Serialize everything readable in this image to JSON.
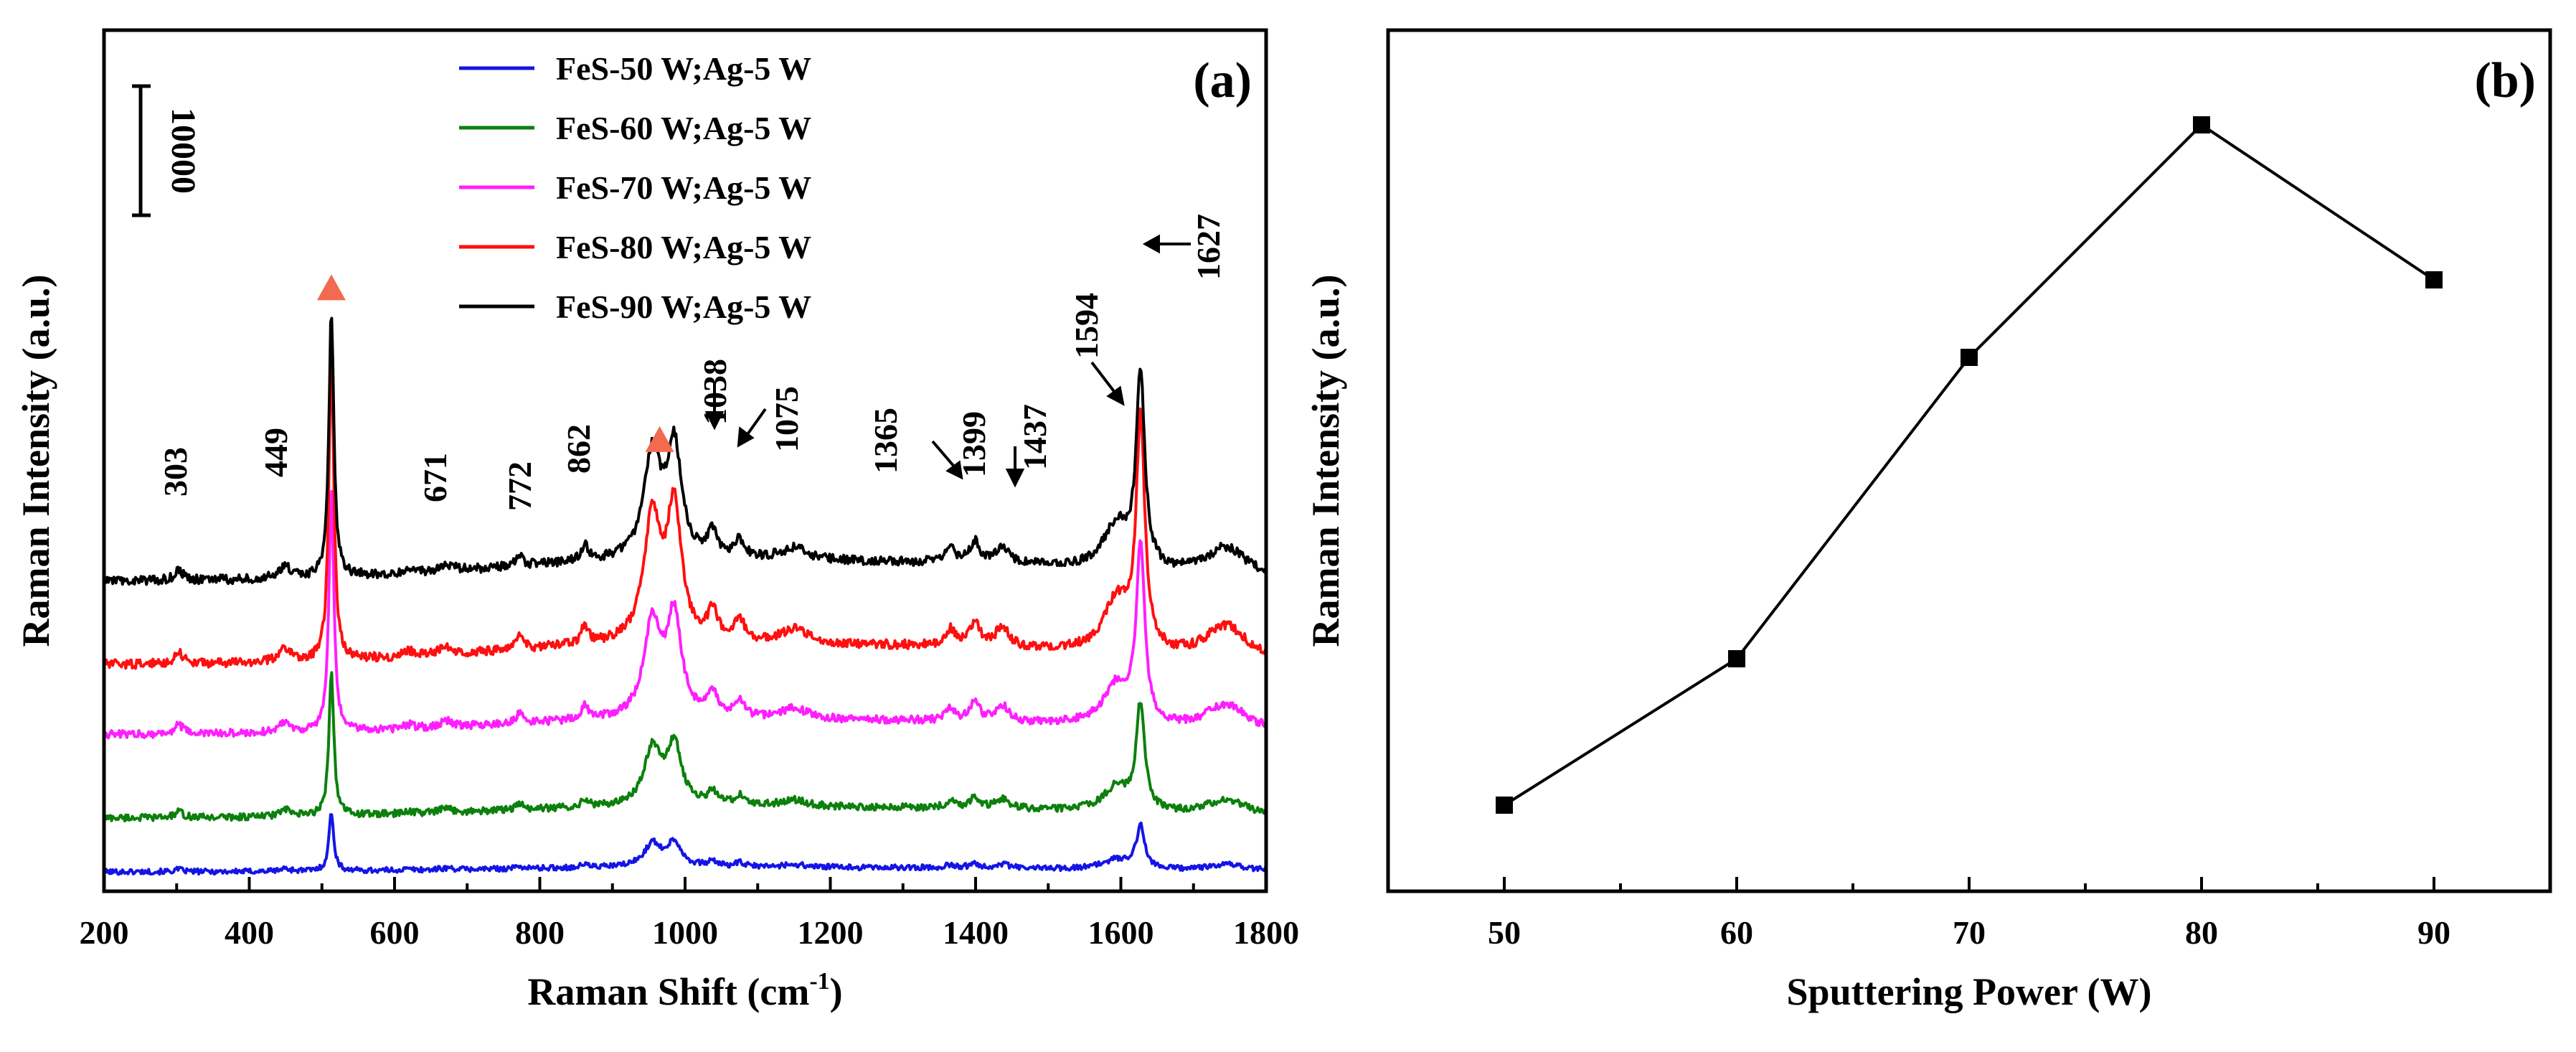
{
  "chart_data": [
    {
      "panel": "(a)",
      "type": "line",
      "title": "",
      "xlabel": "Raman Shift (cm",
      "xlabel_superscript": "-1",
      "xlabel_close": ")",
      "ylabel": "Raman Intensity (a.u.)",
      "xlim": [
        200,
        1800
      ],
      "xticks": [
        "200",
        "400",
        "600",
        "800",
        "1000",
        "1200",
        "1400",
        "1600",
        "1800"
      ],
      "scale_bar_label": "10000",
      "series": [
        {
          "name": "FeS-50 W;Ag-5 W",
          "color": "#1414e6",
          "offset": 0.0,
          "peak_scale": 0.12,
          "bg_scale": 0.12
        },
        {
          "name": "FeS-60 W;Ag-5 W",
          "color": "#0c800c",
          "offset": 1.0,
          "peak_scale": 0.3,
          "bg_scale": 0.3
        },
        {
          "name": "FeS-70 W;Ag-5 W",
          "color": "#ff1eff",
          "offset": 2.55,
          "peak_scale": 0.5,
          "bg_scale": 0.4
        },
        {
          "name": "FeS-80 W;Ag-5 W",
          "color": "#ff0f0f",
          "offset": 3.85,
          "peak_scale": 0.65,
          "bg_scale": 0.55
        },
        {
          "name": "FeS-90 W;Ag-5 W",
          "color": "#000000",
          "offset": 5.4,
          "peak_scale": 0.55,
          "bg_scale": 0.55
        }
      ],
      "peaks": [
        {
          "x": 303,
          "h": 0.35,
          "w": 7
        },
        {
          "x": 449,
          "h": 0.4,
          "w": 9
        },
        {
          "x": 513,
          "h": 9.0,
          "w": 4
        },
        {
          "x": 620,
          "h": 0.15,
          "w": 8
        },
        {
          "x": 671,
          "h": 0.25,
          "w": 10
        },
        {
          "x": 772,
          "h": 0.35,
          "w": 6
        },
        {
          "x": 862,
          "h": 0.5,
          "w": 6
        },
        {
          "x": 955,
          "h": 3.5,
          "w": 14
        },
        {
          "x": 985,
          "h": 3.7,
          "w": 12
        },
        {
          "x": 1038,
          "h": 0.8,
          "w": 8
        },
        {
          "x": 1075,
          "h": 0.6,
          "w": 8
        },
        {
          "x": 1150,
          "h": 0.4,
          "w": 22
        },
        {
          "x": 1365,
          "h": 0.45,
          "w": 8
        },
        {
          "x": 1399,
          "h": 0.7,
          "w": 8
        },
        {
          "x": 1437,
          "h": 0.6,
          "w": 10
        },
        {
          "x": 1594,
          "h": 1.5,
          "w": 22
        },
        {
          "x": 1627,
          "h": 6.5,
          "w": 7
        },
        {
          "x": 1745,
          "h": 1.0,
          "w": 35
        }
      ],
      "peak_labels": [
        "303",
        "449",
        "671",
        "772",
        "862",
        "1038",
        "1075",
        "1365",
        "1399",
        "1437",
        "1594",
        "1627"
      ],
      "markers": [
        {
          "x": 513,
          "shape": "triangle",
          "color": "#f26a4f"
        },
        {
          "x": 965,
          "shape": "triangle",
          "color": "#f26a4f"
        }
      ]
    },
    {
      "panel": "(b)",
      "type": "line",
      "title": "",
      "xlabel": "Sputtering Power (W)",
      "ylabel": "Raman Intensity (a.u.)",
      "xlim": [
        45,
        95
      ],
      "ylim": [
        0,
        100
      ],
      "x": [
        50,
        60,
        70,
        80,
        90
      ],
      "values": [
        10,
        27,
        62,
        89,
        71
      ],
      "xticks": [
        "50",
        "60",
        "70",
        "80",
        "90"
      ],
      "marker": "square",
      "color": "#000000"
    }
  ]
}
